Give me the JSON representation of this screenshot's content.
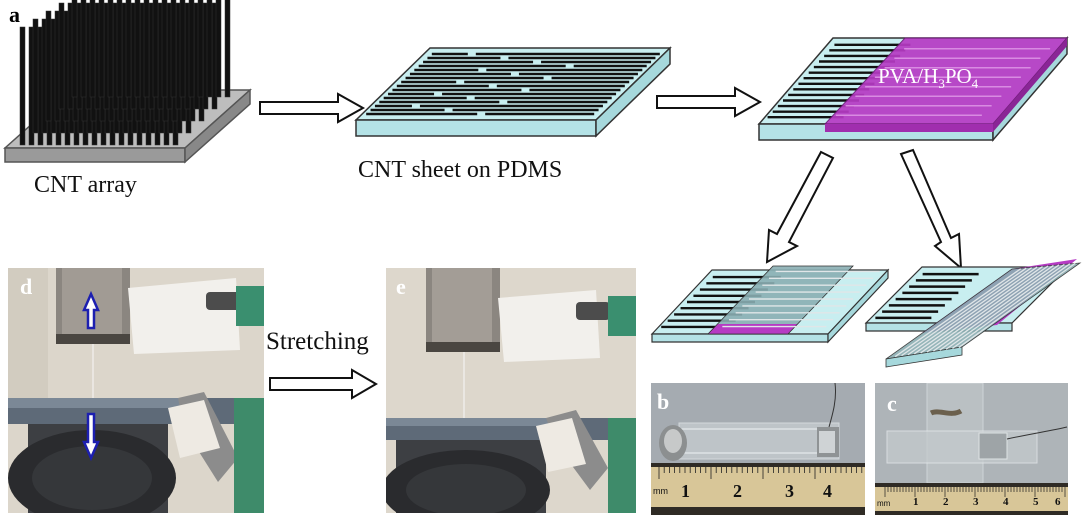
{
  "panels": {
    "a": "a",
    "b": "b",
    "c": "c",
    "d": "d",
    "e": "e"
  },
  "captions": {
    "cnt_array": "CNT array",
    "cnt_sheet": "CNT sheet on PDMS",
    "electrolyte_main": "PVA/H",
    "electrolyte_sub1": "3",
    "electrolyte_mid": "PO",
    "electrolyte_sub2": "4",
    "stretching": "Stretching"
  },
  "ruler_b": {
    "unit": "mm",
    "ticks": [
      "1",
      "2",
      "3",
      "4"
    ]
  },
  "ruler_c": {
    "unit": "mm",
    "ticks": [
      "1",
      "2",
      "3",
      "4",
      "5",
      "6"
    ]
  },
  "colors": {
    "substrate": "#c8eef0",
    "cnt": "#111111",
    "electrolyte": "#b63bc4",
    "arrow_blue": "#1c1fb0"
  }
}
